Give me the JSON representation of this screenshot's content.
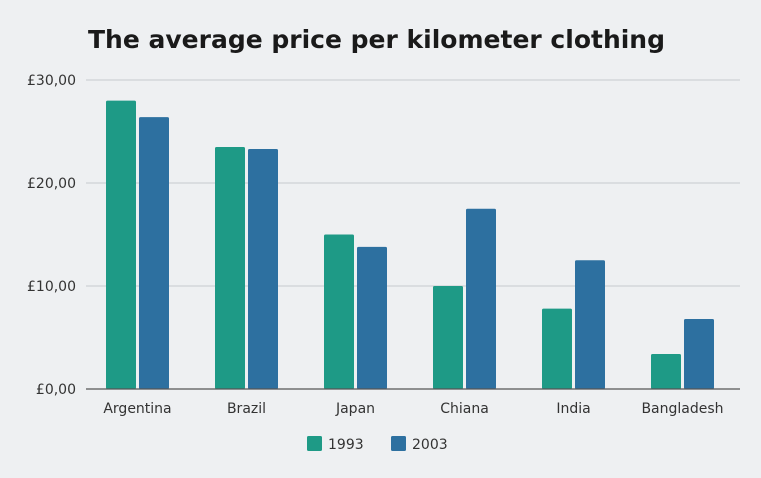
{
  "chart_data": {
    "type": "bar",
    "title": "The average price per kilometer clothing",
    "xlabel": "",
    "ylabel": "",
    "categories": [
      "Argentina",
      "Brazil",
      "Japan",
      "Chiana",
      "India",
      "Bangladesh"
    ],
    "series": [
      {
        "name": "1993",
        "color": "#1e9a86",
        "values": [
          28.0,
          23.5,
          15.0,
          10.0,
          7.8,
          3.4
        ]
      },
      {
        "name": "2003",
        "color": "#2d70a0",
        "values": [
          26.4,
          23.3,
          13.8,
          17.5,
          12.5,
          6.8
        ]
      }
    ],
    "ylim": [
      0,
      30
    ],
    "yticks": [
      {
        "value": 0,
        "label": "£0,00"
      },
      {
        "value": 10,
        "label": "£10,00"
      },
      {
        "value": 20,
        "label": "£20,00"
      },
      {
        "value": 30,
        "label": "£30,00"
      }
    ],
    "grid": true,
    "legend_position": "bottom-center"
  }
}
